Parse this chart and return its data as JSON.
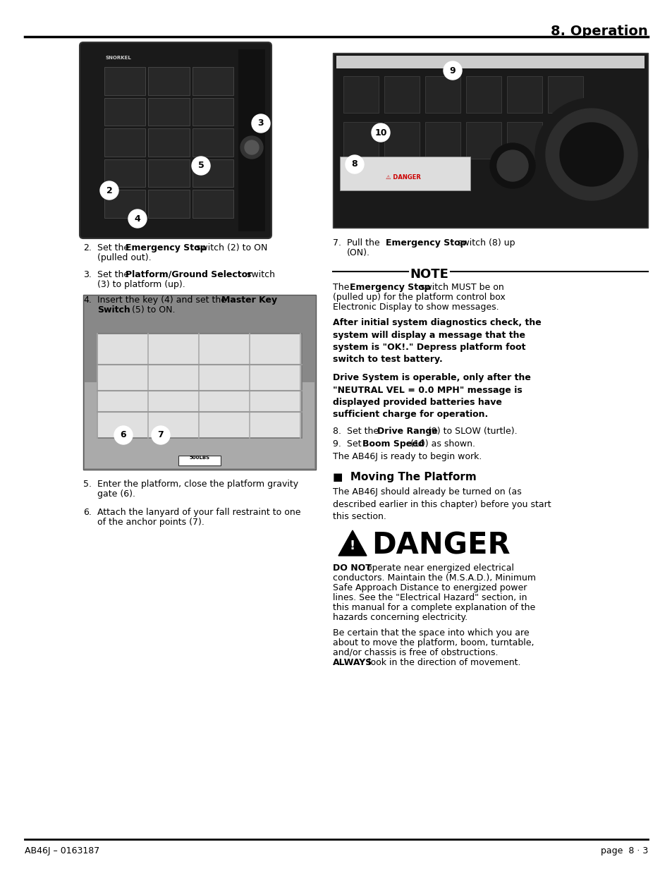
{
  "page_title": "8. Operation",
  "footer_left": "AB46J – 0163187",
  "footer_right": "page  8 · 3",
  "bg": "#ffffff"
}
